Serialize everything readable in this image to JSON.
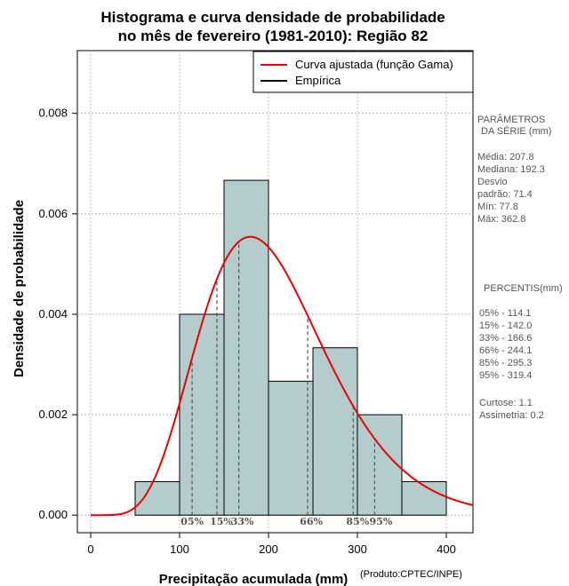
{
  "chart_data": {
    "type": "histogram",
    "title_lines": [
      "Histograma e curva densidade de probabilidade",
      "no mês de fevereiro (1981-2010): Região 82"
    ],
    "xlabel": "Precipitação acumulada (mm)",
    "ylabel": "Densidade de probabilidade",
    "credit": "(Produto:CPTEC/INPE)",
    "xlim": [
      -15,
      430
    ],
    "ylim": [
      -0.00035,
      0.00925
    ],
    "x_ticks": [
      0,
      100,
      200,
      300,
      400
    ],
    "y_ticks": [
      0.0,
      0.002,
      0.004,
      0.006,
      0.008
    ],
    "y_tick_labels": [
      "0.000",
      "0.002",
      "0.004",
      "0.006",
      "0.008"
    ],
    "x_gridlines": [
      0,
      100,
      200,
      300,
      400
    ],
    "y_gridlines": [
      0.0,
      0.002,
      0.004,
      0.006,
      0.008
    ],
    "bins": [
      {
        "start": 50,
        "end": 100,
        "density": 0.000667
      },
      {
        "start": 100,
        "end": 150,
        "density": 0.004
      },
      {
        "start": 150,
        "end": 200,
        "density": 0.006667
      },
      {
        "start": 200,
        "end": 250,
        "density": 0.002667
      },
      {
        "start": 250,
        "end": 300,
        "density": 0.003333
      },
      {
        "start": 300,
        "end": 350,
        "density": 0.002
      },
      {
        "start": 350,
        "end": 400,
        "density": 0.000667
      }
    ],
    "gamma_fit": {
      "shape": 7.4,
      "location": 0,
      "x_max": 430
    },
    "legend": [
      {
        "label": "Curva ajustada (função Gama)",
        "color": "#e60000"
      },
      {
        "label": "Empírica",
        "color": "#000000"
      }
    ],
    "percentile_markers": [
      {
        "label": "05%",
        "value": 114.1
      },
      {
        "label": "15%",
        "value": 142.0
      },
      {
        "label": "33%",
        "value": 166.6
      },
      {
        "label": "66%",
        "value": 244.1
      },
      {
        "label": "85%",
        "value": 295.3
      },
      {
        "label": "95%",
        "value": 319.4
      }
    ]
  },
  "side_panel": {
    "params_heading_1": "PARÂMETROS",
    "params_heading_2": "DA SÉRIE (mm)",
    "media": "Média:  207.8",
    "mediana": "Mediana:  192.3",
    "desvio_1": "Desvio",
    "desvio_2": "padrão:  71.4",
    "min": "Mín:  77.8",
    "max": "Máx:  362.8",
    "percentis_heading": "PERCENTIS(mm)",
    "percentis": [
      "05% -  114.1",
      "15% -  142.0",
      "33% -  166.6",
      "66% -  244.1",
      "85% -  295.3",
      "95% -  319.4"
    ],
    "curtose": "Curtose:  1.1",
    "assimetria": "Assimetria:  0.2"
  },
  "colors": {
    "bar_fill": "#b4cccc",
    "bar_stroke": "#000000",
    "curve": "#e60000",
    "grid": "#aaaaaa",
    "percentile_line": "#555555"
  }
}
